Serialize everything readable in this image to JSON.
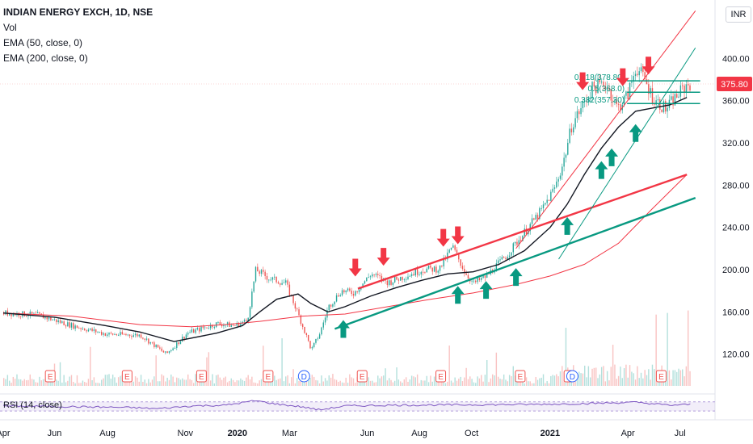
{
  "header": {
    "title": "INDIAN ENERGY EXCH, 1D, NSE",
    "indicators": [
      "Vol",
      "EMA (50, close, 0)",
      "EMA (200, close, 0)"
    ],
    "unit_badge": "INR",
    "rsi_label": "RSI (14, close)"
  },
  "colors": {
    "candle_up": "#26a69a",
    "candle_down": "#ef5350",
    "ema50": "#131722",
    "ema200": "#f23645",
    "resistance_line": "#f23645",
    "support_line": "#089981",
    "arrow_up": "#089981",
    "arrow_down": "#f23645",
    "rsi": "#7e57c2",
    "price_tag": "#f23645"
  },
  "chart_data": {
    "type": "line",
    "title": "INDIAN ENERGY EXCH, 1D, NSE",
    "ylim": [
      90,
      440
    ],
    "y_ticks": [
      "120.00",
      "160.00",
      "200.00",
      "240.00",
      "280.00",
      "320.00",
      "360.00",
      "400.00"
    ],
    "x_tick_labels": [
      "Apr",
      "Jun",
      "Aug",
      "Nov",
      "2020",
      "Mar",
      "Jun",
      "Aug",
      "Oct",
      "2021",
      "Apr",
      "Jul"
    ],
    "x_ticks": [
      0,
      60,
      122,
      213,
      274,
      335,
      426,
      487,
      548,
      640,
      731,
      792
    ],
    "last_price": "375.80",
    "price_series": {
      "name": "Close",
      "x": [
        0,
        40,
        80,
        120,
        160,
        190,
        215,
        250,
        270,
        285,
        295,
        310,
        330,
        345,
        360,
        370,
        380,
        395,
        410,
        430,
        450,
        470,
        490,
        510,
        525,
        540,
        550,
        565,
        590,
        610,
        630,
        645,
        655,
        665,
        675,
        690,
        705,
        718,
        730,
        740,
        750,
        760,
        775,
        785,
        800
      ],
      "values": [
        159,
        157,
        147,
        139,
        138,
        120,
        140,
        149,
        147,
        152,
        200,
        192,
        187,
        157,
        124,
        140,
        165,
        180,
        178,
        196,
        188,
        194,
        200,
        201,
        222,
        197,
        187,
        194,
        215,
        236,
        257,
        278,
        302,
        338,
        352,
        373,
        376,
        353,
        365,
        392,
        380,
        362,
        352,
        362,
        375.8
      ]
    },
    "ema50": {
      "name": "EMA (50, close, 0)",
      "x": [
        0,
        60,
        120,
        160,
        200,
        250,
        280,
        300,
        320,
        345,
        360,
        380,
        400,
        430,
        460,
        490,
        520,
        550,
        580,
        610,
        640,
        660,
        680,
        700,
        720,
        740,
        760,
        780,
        800
      ],
      "values": [
        159,
        155,
        147,
        141,
        132,
        140,
        147,
        160,
        172,
        177,
        168,
        160,
        165,
        175,
        183,
        190,
        196,
        198,
        205,
        218,
        240,
        262,
        290,
        315,
        335,
        350,
        353,
        356,
        363
      ]
    },
    "ema200": {
      "name": "EMA (200, close, 0)",
      "x": [
        0,
        80,
        160,
        220,
        260,
        300,
        350,
        400,
        450,
        500,
        550,
        600,
        640,
        680,
        720,
        760,
        800
      ],
      "values": [
        159,
        156,
        148,
        146,
        148,
        151,
        156,
        158,
        165,
        172,
        178,
        186,
        194,
        205,
        225,
        258,
        290
      ]
    },
    "rsi_series": {
      "name": "RSI (14, close)",
      "x": [
        0,
        50,
        100,
        150,
        180,
        220,
        260,
        295,
        320,
        350,
        370,
        400,
        450,
        500,
        550,
        600,
        650,
        700,
        740,
        780,
        800
      ],
      "values": [
        52,
        50,
        48,
        45,
        40,
        52,
        55,
        75,
        60,
        48,
        35,
        52,
        55,
        56,
        57,
        58,
        60,
        64,
        68,
        55,
        58
      ]
    },
    "fibonacci": [
      {
        "label": "0.618(378.80)",
        "value": 378.8
      },
      {
        "label": "0.5(368.0)",
        "value": 368.0
      },
      {
        "label": "0.382(357.30)",
        "value": 357.3
      }
    ],
    "trend_lines": [
      {
        "name": "resistance",
        "x": [
          415,
          800
        ],
        "values": [
          182,
          290
        ]
      },
      {
        "name": "support",
        "x": [
          388,
          810
        ],
        "values": [
          144,
          268
        ]
      },
      {
        "name": "upper channel",
        "x": [
          600,
          810
        ],
        "values": [
          220,
          445
        ]
      },
      {
        "name": "lower channel",
        "x": [
          650,
          810
        ],
        "values": [
          210,
          410
        ]
      }
    ],
    "up_arrows_x": [
      398,
      532,
      565,
      600,
      660,
      700,
      712,
      740
    ],
    "down_arrows_x": [
      412,
      445,
      515,
      532,
      678,
      725,
      755
    ],
    "event_badges": [
      {
        "x": 55,
        "label": "E"
      },
      {
        "x": 145,
        "label": "E"
      },
      {
        "x": 232,
        "label": "E"
      },
      {
        "x": 310,
        "label": "E"
      },
      {
        "x": 352,
        "label": "D"
      },
      {
        "x": 420,
        "label": "E"
      },
      {
        "x": 512,
        "label": "E"
      },
      {
        "x": 605,
        "label": "E"
      },
      {
        "x": 662,
        "label": "E"
      },
      {
        "x": 666,
        "label": "D"
      },
      {
        "x": 770,
        "label": "E"
      }
    ]
  }
}
